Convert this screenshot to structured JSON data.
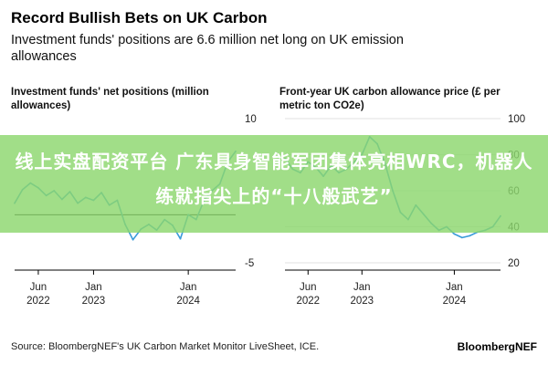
{
  "header": {
    "title": "Record Bullish Bets on UK Carbon",
    "subtitle": "Investment funds' positions are 6.6 million net long on UK emission allowances"
  },
  "overlay": {
    "text": "线上实盘配资平台 广东具身智能军团集体亮相WRC，机器人练就指尖上的“十八般武艺”"
  },
  "footer": {
    "source": "Source: BloombergNEF's UK Carbon Market Monitor LiveSheet, ICE.",
    "brand": "BloombergNEF"
  },
  "colors": {
    "line": "#3a9bd9",
    "zero_line": "#000000",
    "grid": "#d9d9d9",
    "overlay": "#8cd76e"
  },
  "chart_data": [
    {
      "type": "line",
      "title": "Investment funds' net positions (million allowances)",
      "ylim": [
        -5,
        10
      ],
      "yticks": [
        10,
        "",
        "",
        -5
      ],
      "xticks": [
        {
          "date": "2022-06",
          "label": [
            "Jun",
            "2022"
          ]
        },
        {
          "date": "2023-01",
          "label": [
            "Jan",
            "2023"
          ]
        },
        {
          "date": "2024-01",
          "label": [
            "Jan",
            "2024"
          ]
        }
      ],
      "xlim": [
        "2022-03",
        "2024-07"
      ],
      "zero_line": true,
      "series": [
        {
          "x": [
            "2022-03",
            "2022-04",
            "2022-05",
            "2022-06",
            "2022-07",
            "2022-08",
            "2022-09",
            "2022-10",
            "2022-11",
            "2022-12",
            "2023-01",
            "2023-02",
            "2023-03",
            "2023-04",
            "2023-05",
            "2023-06",
            "2023-07",
            "2023-08",
            "2023-09",
            "2023-10",
            "2023-11",
            "2023-12",
            "2024-01",
            "2024-02",
            "2024-03",
            "2024-04",
            "2024-05",
            "2024-06",
            "2024-07"
          ],
          "values": [
            1.2,
            2.6,
            3.3,
            2.8,
            2.0,
            2.5,
            1.6,
            2.4,
            1.2,
            1.8,
            1.5,
            2.3,
            1.0,
            1.5,
            -1.0,
            -2.6,
            -1.5,
            -1.0,
            -1.6,
            -0.5,
            -1.1,
            -2.5,
            0.0,
            -0.5,
            1.5,
            2.5,
            3.2,
            5.5,
            6.6
          ]
        }
      ]
    },
    {
      "type": "line",
      "title": "Front-year UK carbon allowance price (£ per metric ton CO2e)",
      "ylim": [
        20,
        100
      ],
      "yticks": [
        100,
        80,
        60,
        40,
        20
      ],
      "xticks": [
        {
          "date": "2022-06",
          "label": [
            "Jun",
            "2022"
          ]
        },
        {
          "date": "2023-01",
          "label": [
            "Jan",
            "2023"
          ]
        },
        {
          "date": "2024-01",
          "label": [
            "Jan",
            "2024"
          ]
        }
      ],
      "xlim": [
        "2022-03",
        "2024-07"
      ],
      "zero_line": false,
      "series": [
        {
          "x": [
            "2022-03",
            "2022-04",
            "2022-05",
            "2022-06",
            "2022-07",
            "2022-08",
            "2022-09",
            "2022-10",
            "2022-11",
            "2022-12",
            "2023-01",
            "2023-02",
            "2023-03",
            "2023-04",
            "2023-05",
            "2023-06",
            "2023-07",
            "2023-08",
            "2023-09",
            "2023-10",
            "2023-11",
            "2023-12",
            "2024-01",
            "2024-02",
            "2024-03",
            "2024-04",
            "2024-05",
            "2024-06",
            "2024-07"
          ],
          "values": [
            78,
            72,
            70,
            76,
            73,
            68,
            74,
            70,
            72,
            76,
            80,
            90,
            86,
            75,
            60,
            48,
            44,
            52,
            47,
            42,
            38,
            40,
            36,
            34,
            35,
            37,
            38,
            40,
            46
          ]
        }
      ]
    }
  ]
}
